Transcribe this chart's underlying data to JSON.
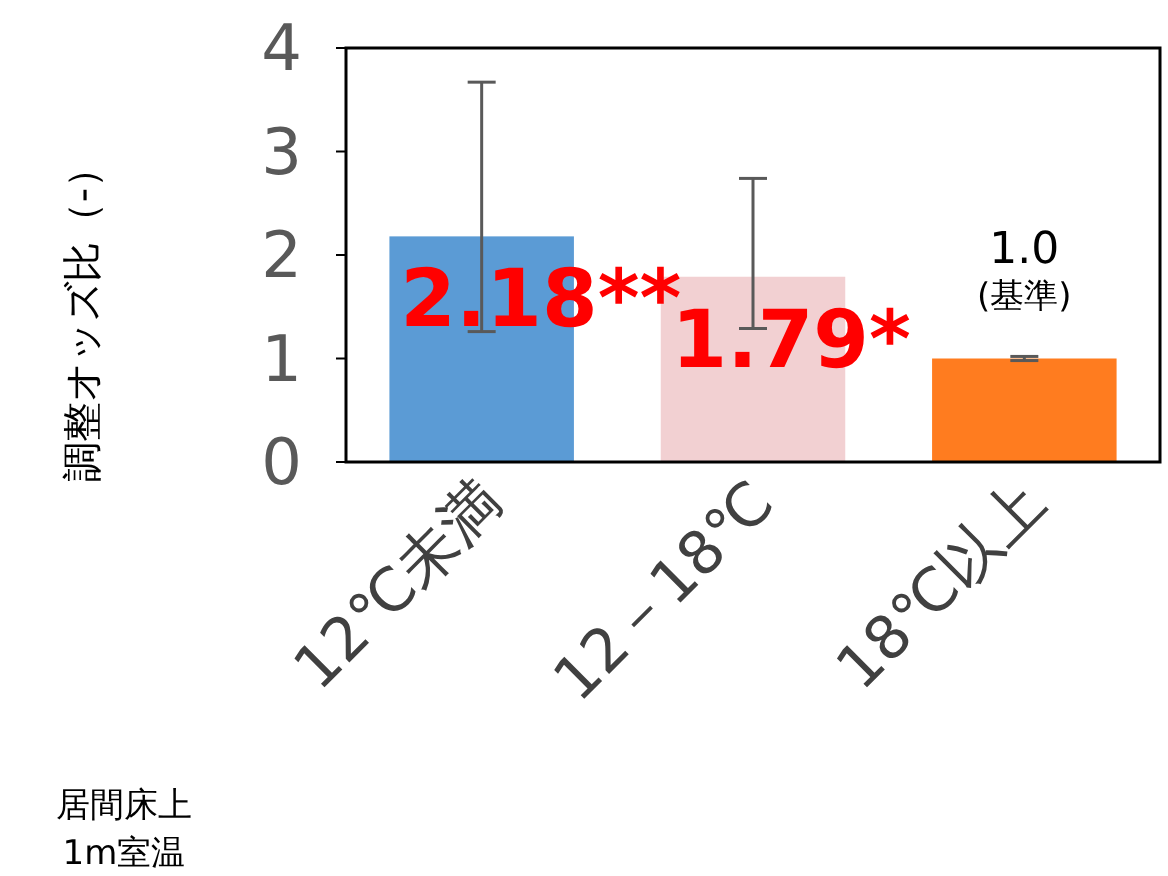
{
  "chart_data": {
    "type": "bar",
    "categories": [
      "12℃未満",
      "12－18℃",
      "18℃以上"
    ],
    "values": [
      2.18,
      1.79,
      1.0
    ],
    "colors": [
      "#5b9bd5",
      "#f2d0d2",
      "#ff7c1f"
    ],
    "errors": [
      [
        1.26,
        3.67
      ],
      [
        1.29,
        2.74
      ],
      [
        0.98,
        1.02
      ]
    ],
    "value_labels": [
      "2.18**",
      "1.79*",
      null
    ],
    "annotations": [
      {
        "text": "1.0\n(基準)",
        "x": "18℃以上",
        "y": 1.0
      }
    ],
    "xlabel": "居間床上\n1m室温",
    "ylabel": "調整オッズ比（-）",
    "ylim": [
      0,
      4
    ],
    "yticks": [
      0,
      1,
      2,
      3,
      4
    ],
    "grid": false
  }
}
